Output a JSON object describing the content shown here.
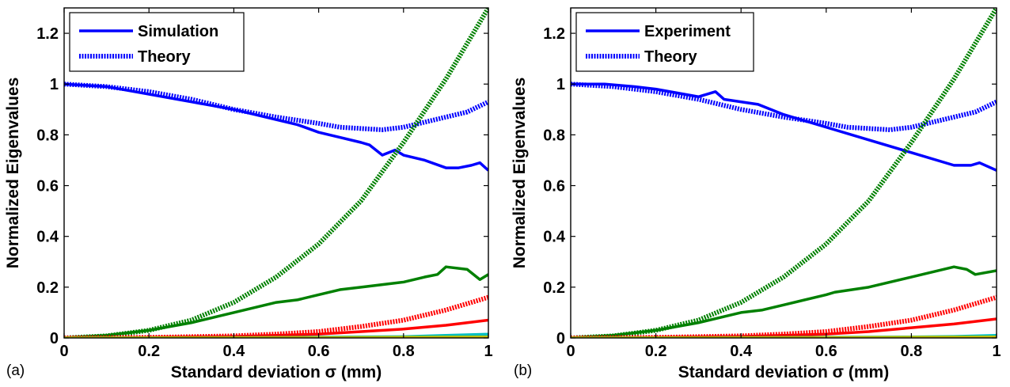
{
  "chart_data": [
    {
      "type": "line",
      "panel_label": "(a)",
      "xlabel": "Standard deviation σ (mm)",
      "ylabel": "Normalized Eigenvalues",
      "xlim": [
        0,
        1
      ],
      "ylim": [
        0,
        1.3
      ],
      "xticks": [
        "0",
        "0.2",
        "0.4",
        "0.6",
        "0.8",
        "1"
      ],
      "yticks": [
        "0",
        "0.2",
        "0.4",
        "0.6",
        "0.8",
        "1",
        "1.2"
      ],
      "grid": false,
      "legend_position": "top-left",
      "legend": [
        {
          "label": "Simulation",
          "style": "solid",
          "color": "#0000ff"
        },
        {
          "label": "Theory",
          "style": "dotted",
          "color": "#0000ff"
        }
      ],
      "series": [
        {
          "style": "solid",
          "color": "#0000ff",
          "x": [
            0,
            0.1,
            0.2,
            0.3,
            0.4,
            0.5,
            0.55,
            0.6,
            0.65,
            0.7,
            0.72,
            0.75,
            0.78,
            0.8,
            0.85,
            0.9,
            0.93,
            0.96,
            0.98,
            1.0
          ],
          "y": [
            1.0,
            0.99,
            0.96,
            0.93,
            0.9,
            0.86,
            0.84,
            0.81,
            0.79,
            0.77,
            0.76,
            0.72,
            0.74,
            0.72,
            0.7,
            0.67,
            0.67,
            0.68,
            0.69,
            0.66
          ]
        },
        {
          "style": "dotted",
          "color": "#0000ff",
          "x": [
            0,
            0.1,
            0.2,
            0.3,
            0.4,
            0.5,
            0.6,
            0.65,
            0.7,
            0.75,
            0.8,
            0.85,
            0.9,
            0.95,
            1.0
          ],
          "y": [
            1.0,
            0.99,
            0.97,
            0.94,
            0.9,
            0.87,
            0.845,
            0.83,
            0.825,
            0.82,
            0.83,
            0.85,
            0.87,
            0.89,
            0.93
          ]
        },
        {
          "style": "solid",
          "color": "#008000",
          "x": [
            0,
            0.1,
            0.2,
            0.3,
            0.4,
            0.5,
            0.55,
            0.6,
            0.65,
            0.7,
            0.75,
            0.8,
            0.85,
            0.88,
            0.9,
            0.95,
            0.98,
            1.0
          ],
          "y": [
            0,
            0.01,
            0.03,
            0.06,
            0.1,
            0.14,
            0.15,
            0.17,
            0.19,
            0.2,
            0.21,
            0.22,
            0.24,
            0.25,
            0.28,
            0.27,
            0.23,
            0.25
          ]
        },
        {
          "style": "dotted",
          "color": "#008000",
          "x": [
            0,
            0.1,
            0.2,
            0.3,
            0.4,
            0.5,
            0.6,
            0.7,
            0.8,
            0.9,
            1.0
          ],
          "y": [
            0,
            0.008,
            0.03,
            0.07,
            0.14,
            0.24,
            0.37,
            0.54,
            0.77,
            1.02,
            1.3
          ]
        },
        {
          "style": "solid",
          "color": "#ff0000",
          "x": [
            0,
            0.2,
            0.4,
            0.5,
            0.6,
            0.7,
            0.8,
            0.9,
            0.95,
            1.0
          ],
          "y": [
            0,
            0.002,
            0.006,
            0.01,
            0.015,
            0.025,
            0.035,
            0.05,
            0.06,
            0.07
          ]
        },
        {
          "style": "dotted",
          "color": "#ff0000",
          "x": [
            0,
            0.2,
            0.4,
            0.5,
            0.6,
            0.7,
            0.8,
            0.9,
            1.0
          ],
          "y": [
            0,
            0.002,
            0.008,
            0.015,
            0.025,
            0.045,
            0.07,
            0.11,
            0.16
          ]
        },
        {
          "style": "solid",
          "color": "#00bfbf",
          "x": [
            0,
            0.5,
            0.8,
            0.9,
            1.0
          ],
          "y": [
            0,
            0.002,
            0.005,
            0.01,
            0.015
          ]
        },
        {
          "style": "solid",
          "color": "#bfbf00",
          "x": [
            0,
            0.5,
            1.0
          ],
          "y": [
            0,
            0.001,
            0.004
          ]
        }
      ]
    },
    {
      "type": "line",
      "panel_label": "(b)",
      "xlabel": "Standard deviation σ (mm)",
      "ylabel": "Normalized Eigenvalues",
      "xlim": [
        0,
        1
      ],
      "ylim": [
        0,
        1.3
      ],
      "xticks": [
        "0",
        "0.2",
        "0.4",
        "0.6",
        "0.8",
        "1"
      ],
      "yticks": [
        "0",
        "0.2",
        "0.4",
        "0.6",
        "0.8",
        "1",
        "1.2"
      ],
      "grid": false,
      "legend_position": "top-left",
      "legend": [
        {
          "label": "Experiment",
          "style": "solid",
          "color": "#0000ff"
        },
        {
          "label": "Theory",
          "style": "dotted",
          "color": "#0000ff"
        }
      ],
      "series": [
        {
          "style": "solid",
          "color": "#0000ff",
          "x": [
            0,
            0.08,
            0.15,
            0.2,
            0.3,
            0.34,
            0.36,
            0.44,
            0.5,
            0.6,
            0.7,
            0.8,
            0.9,
            0.94,
            0.96,
            1.0
          ],
          "y": [
            1.0,
            1.0,
            0.99,
            0.98,
            0.95,
            0.97,
            0.94,
            0.92,
            0.88,
            0.83,
            0.78,
            0.73,
            0.68,
            0.68,
            0.69,
            0.66
          ]
        },
        {
          "style": "dotted",
          "color": "#0000ff",
          "x": [
            0,
            0.1,
            0.2,
            0.3,
            0.4,
            0.5,
            0.6,
            0.65,
            0.7,
            0.75,
            0.8,
            0.85,
            0.9,
            0.95,
            1.0
          ],
          "y": [
            1.0,
            0.99,
            0.97,
            0.94,
            0.9,
            0.87,
            0.845,
            0.83,
            0.825,
            0.82,
            0.83,
            0.85,
            0.87,
            0.89,
            0.93
          ]
        },
        {
          "style": "solid",
          "color": "#008000",
          "x": [
            0,
            0.1,
            0.2,
            0.3,
            0.4,
            0.45,
            0.5,
            0.6,
            0.62,
            0.7,
            0.8,
            0.9,
            0.93,
            0.95,
            1.0
          ],
          "y": [
            0,
            0.01,
            0.03,
            0.06,
            0.1,
            0.11,
            0.13,
            0.17,
            0.18,
            0.2,
            0.24,
            0.28,
            0.27,
            0.25,
            0.265
          ]
        },
        {
          "style": "dotted",
          "color": "#008000",
          "x": [
            0,
            0.1,
            0.2,
            0.3,
            0.4,
            0.5,
            0.6,
            0.7,
            0.8,
            0.9,
            1.0
          ],
          "y": [
            0,
            0.008,
            0.03,
            0.07,
            0.14,
            0.24,
            0.37,
            0.54,
            0.77,
            1.02,
            1.3
          ]
        },
        {
          "style": "solid",
          "color": "#ff0000",
          "x": [
            0,
            0.2,
            0.4,
            0.5,
            0.6,
            0.7,
            0.8,
            0.9,
            1.0
          ],
          "y": [
            0,
            0.002,
            0.006,
            0.01,
            0.015,
            0.025,
            0.04,
            0.055,
            0.075
          ]
        },
        {
          "style": "dotted",
          "color": "#ff0000",
          "x": [
            0,
            0.2,
            0.4,
            0.5,
            0.6,
            0.7,
            0.8,
            0.9,
            1.0
          ],
          "y": [
            0,
            0.002,
            0.008,
            0.015,
            0.025,
            0.045,
            0.07,
            0.11,
            0.16
          ]
        },
        {
          "style": "solid",
          "color": "#00bfbf",
          "x": [
            0,
            0.5,
            0.8,
            0.9,
            1.0
          ],
          "y": [
            0,
            0.002,
            0.004,
            0.006,
            0.01
          ]
        },
        {
          "style": "solid",
          "color": "#bfbf00",
          "x": [
            0,
            0.5,
            1.0
          ],
          "y": [
            0,
            0.001,
            0.004
          ]
        }
      ]
    }
  ]
}
